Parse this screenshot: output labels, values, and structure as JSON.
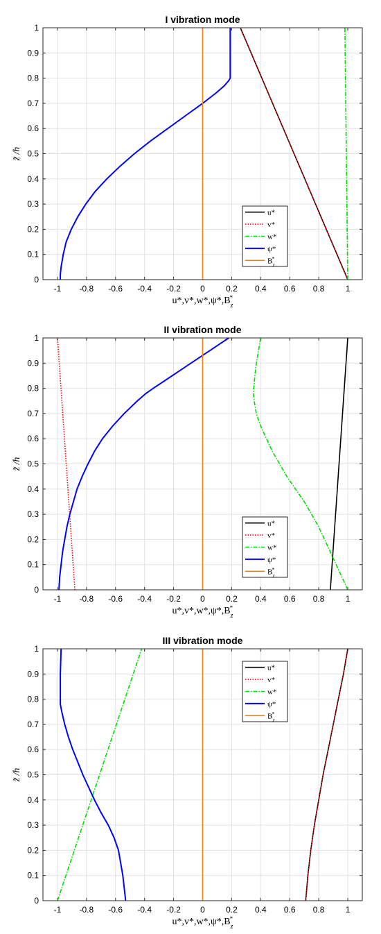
{
  "chart_data": [
    {
      "type": "line",
      "title": "I  vibration mode",
      "xlabel": "u*,v*,w*,ψ*,B*z",
      "ylabel": "z̃ /h",
      "xlim": [
        -1.1,
        1.1
      ],
      "ylim": [
        0,
        1
      ],
      "grid": true,
      "legend_position": "bottom-right",
      "xticks": [
        "-1",
        "-0.8",
        "-0.6",
        "-0.4",
        "-0.2",
        "0",
        "0.2",
        "0.4",
        "0.6",
        "0.8",
        "1"
      ],
      "yticks": [
        "0",
        "0.1",
        "0.2",
        "0.3",
        "0.4",
        "0.5",
        "0.6",
        "0.7",
        "0.8",
        "0.9",
        "1"
      ],
      "series": [
        {
          "name": "u*",
          "color": "#000000",
          "dash": "solid",
          "y": [
            0,
            1
          ],
          "x": [
            1.0,
            0.26
          ]
        },
        {
          "name": "v*",
          "color": "#ff0000",
          "dash": "dotted",
          "y": [
            0,
            1
          ],
          "x": [
            1.0,
            0.26
          ]
        },
        {
          "name": "w*",
          "color": "#00dd00",
          "dash": "dashdot",
          "y": [
            0,
            1
          ],
          "x": [
            1.0,
            0.98
          ]
        },
        {
          "name": "ψ*",
          "color": "#0000ff",
          "dash": "solid",
          "y": [
            0,
            0.02,
            0.05,
            0.1,
            0.15,
            0.2,
            0.25,
            0.3,
            0.35,
            0.4,
            0.45,
            0.5,
            0.55,
            0.6,
            0.65,
            0.7,
            0.74,
            0.77,
            0.79,
            0.8,
            0.85,
            0.9,
            0.95,
            1.0
          ],
          "x": [
            -0.98,
            -0.98,
            -0.975,
            -0.96,
            -0.94,
            -0.905,
            -0.86,
            -0.805,
            -0.74,
            -0.66,
            -0.57,
            -0.47,
            -0.36,
            -0.24,
            -0.12,
            0.0,
            0.09,
            0.15,
            0.18,
            0.19,
            0.19,
            0.19,
            0.19,
            0.19
          ]
        },
        {
          "name": "B*z",
          "color": "#f08010",
          "dash": "solid",
          "y": [
            0,
            1
          ],
          "x": [
            0,
            0
          ]
        }
      ]
    },
    {
      "type": "line",
      "title": "II vibration mode",
      "xlabel": "u*,v*,w*,ψ*,B*z",
      "ylabel": "z̃ /h",
      "xlim": [
        -1.1,
        1.1
      ],
      "ylim": [
        0,
        1
      ],
      "grid": true,
      "legend_position": "bottom-right",
      "xticks": [
        "-1",
        "-0.8",
        "-0.6",
        "-0.4",
        "-0.2",
        "0",
        "0.2",
        "0.4",
        "0.6",
        "0.8",
        "1"
      ],
      "yticks": [
        "0",
        "0.1",
        "0.2",
        "0.3",
        "0.4",
        "0.5",
        "0.6",
        "0.7",
        "0.8",
        "0.9",
        "1"
      ],
      "series": [
        {
          "name": "u*",
          "color": "#000000",
          "dash": "solid",
          "y": [
            0,
            1
          ],
          "x": [
            0.88,
            1.0
          ]
        },
        {
          "name": "v*",
          "color": "#ff0000",
          "dash": "dotted",
          "y": [
            0,
            1
          ],
          "x": [
            -0.88,
            -1.0
          ]
        },
        {
          "name": "w*",
          "color": "#00dd00",
          "dash": "dashdot",
          "y": [
            0,
            0.05,
            0.1,
            0.15,
            0.2,
            0.25,
            0.3,
            0.35,
            0.4,
            0.45,
            0.5,
            0.55,
            0.6,
            0.65,
            0.7,
            0.75,
            0.78,
            0.8,
            0.85,
            0.9,
            0.95,
            1.0
          ],
          "x": [
            1.0,
            0.96,
            0.92,
            0.88,
            0.84,
            0.8,
            0.75,
            0.7,
            0.64,
            0.58,
            0.53,
            0.48,
            0.44,
            0.4,
            0.37,
            0.355,
            0.35,
            0.352,
            0.36,
            0.37,
            0.385,
            0.4
          ]
        },
        {
          "name": "ψ*",
          "color": "#0000ff",
          "dash": "solid",
          "y": [
            0,
            0.05,
            0.1,
            0.15,
            0.2,
            0.25,
            0.3,
            0.35,
            0.4,
            0.45,
            0.5,
            0.55,
            0.6,
            0.65,
            0.7,
            0.75,
            0.78,
            0.8,
            0.85,
            0.9,
            0.95,
            1.0
          ],
          "x": [
            -0.99,
            -0.985,
            -0.975,
            -0.965,
            -0.95,
            -0.935,
            -0.915,
            -0.89,
            -0.865,
            -0.83,
            -0.79,
            -0.745,
            -0.69,
            -0.62,
            -0.54,
            -0.45,
            -0.39,
            -0.34,
            -0.21,
            -0.08,
            0.05,
            0.18
          ]
        },
        {
          "name": "B*z",
          "color": "#f08010",
          "dash": "solid",
          "y": [
            0,
            1
          ],
          "x": [
            0,
            0
          ]
        }
      ]
    },
    {
      "type": "line",
      "title": "III vibration mode",
      "xlabel": "u*,v*,w*,ψ*,B*z",
      "ylabel": "z̃ /h",
      "xlim": [
        -1.1,
        1.1
      ],
      "ylim": [
        0,
        1
      ],
      "grid": true,
      "legend_position": "top-right",
      "xticks": [
        "-1",
        "-0.8",
        "-0.6",
        "-0.4",
        "-0.2",
        "0",
        "0.2",
        "0.4",
        "0.6",
        "0.8",
        "1"
      ],
      "yticks": [
        "0",
        "0.1",
        "0.2",
        "0.3",
        "0.4",
        "0.5",
        "0.6",
        "0.7",
        "0.8",
        "0.9",
        "1"
      ],
      "series": [
        {
          "name": "u*",
          "color": "#000000",
          "dash": "solid",
          "y": [
            0,
            0.1,
            0.2,
            0.3,
            0.4,
            0.5,
            0.6,
            0.7,
            0.8,
            0.9,
            1.0
          ],
          "x": [
            0.71,
            0.725,
            0.745,
            0.77,
            0.8,
            0.83,
            0.865,
            0.9,
            0.935,
            0.97,
            1.0
          ]
        },
        {
          "name": "v*",
          "color": "#ff0000",
          "dash": "dotted",
          "y": [
            0,
            0.1,
            0.2,
            0.3,
            0.4,
            0.5,
            0.6,
            0.7,
            0.8,
            0.9,
            1.0
          ],
          "x": [
            0.71,
            0.725,
            0.745,
            0.77,
            0.8,
            0.83,
            0.865,
            0.9,
            0.935,
            0.97,
            1.0
          ]
        },
        {
          "name": "w*",
          "color": "#00dd00",
          "dash": "dashdot",
          "y": [
            0,
            1
          ],
          "x": [
            -1.0,
            -0.42
          ]
        },
        {
          "name": "ψ*",
          "color": "#0000ff",
          "dash": "solid",
          "y": [
            0,
            0.1,
            0.2,
            0.25,
            0.3,
            0.35,
            0.4,
            0.45,
            0.5,
            0.55,
            0.6,
            0.65,
            0.7,
            0.75,
            0.78,
            0.8,
            0.9,
            1.0
          ],
          "x": [
            -0.53,
            -0.55,
            -0.58,
            -0.61,
            -0.65,
            -0.7,
            -0.745,
            -0.785,
            -0.825,
            -0.86,
            -0.895,
            -0.925,
            -0.95,
            -0.97,
            -0.98,
            -0.98,
            -0.98,
            -0.975
          ]
        },
        {
          "name": "B*z",
          "color": "#f08010",
          "dash": "solid",
          "y": [
            0,
            1
          ],
          "x": [
            0,
            0
          ]
        }
      ]
    }
  ]
}
